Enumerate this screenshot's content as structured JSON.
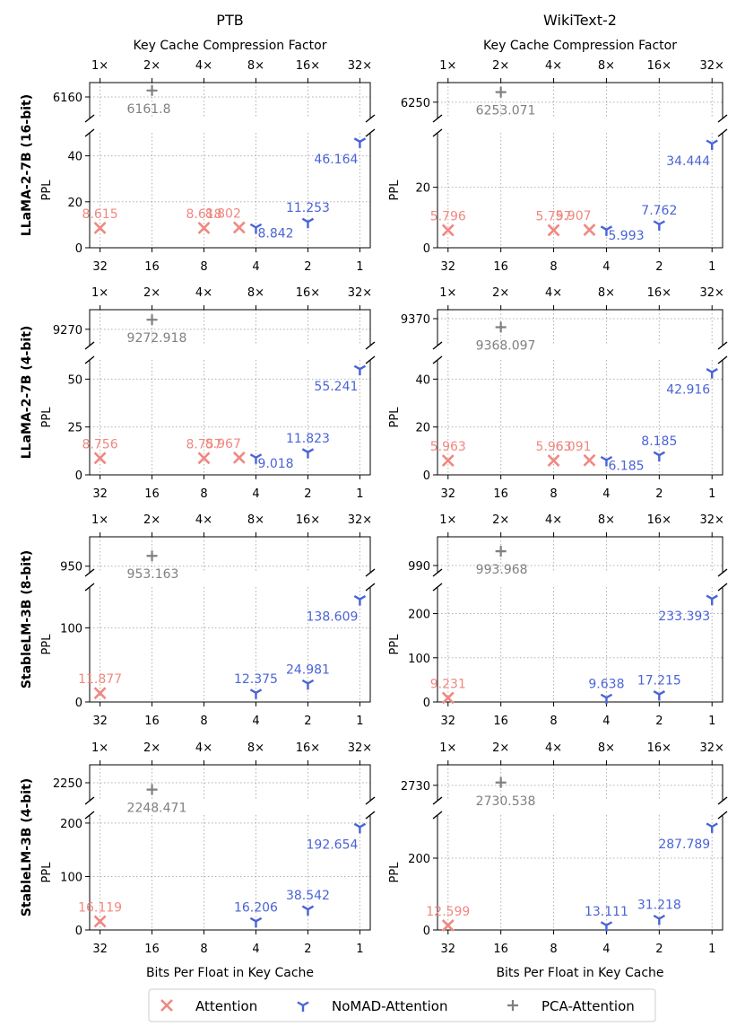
{
  "chart_data": {
    "type": "scatter",
    "columns": [
      "PTB",
      "WikiText-2"
    ],
    "top_axis_label": "Key Cache Compression Factor",
    "top_ticks": [
      "1×",
      "2×",
      "4×",
      "8×",
      "16×",
      "32×"
    ],
    "bottom_axis_label": "Bits Per Float in Key Cache",
    "bottom_ticks": [
      "32",
      "16",
      "8",
      "4",
      "2",
      "1"
    ],
    "ylabel": "PPL",
    "legend": [
      {
        "name": "Attention",
        "color": "#f08880",
        "marker": "x"
      },
      {
        "name": "NoMAD-Attention",
        "color": "#4a64d6",
        "marker": "tri-down"
      },
      {
        "name": "PCA-Attention",
        "color": "#808080",
        "marker": "plus"
      }
    ],
    "panels": [
      {
        "row_label": "LLaMA-2-7B (16-bit)",
        "column": "PTB",
        "upper_yticks": [
          6160
        ],
        "lower_yticks": [
          0,
          20,
          40
        ],
        "lower_ylim": [
          0,
          50
        ],
        "upper_ylim": [
          6154,
          6164
        ],
        "attention": [
          {
            "bits": 32,
            "ppl": 8.615,
            "label": "8.615"
          },
          {
            "bits": 8,
            "ppl": 8.618,
            "label": "8.618"
          },
          {
            "bits": 5,
            "ppl": 8.802,
            "label": "8.802"
          }
        ],
        "nomad": [
          {
            "bits": 4,
            "ppl": 8.842,
            "label": "8.842"
          },
          {
            "bits": 2,
            "ppl": 11.253,
            "label": "11.253"
          },
          {
            "bits": 1,
            "ppl": 46.164,
            "label": "46.164"
          }
        ],
        "pca": [
          {
            "bits": 16,
            "ppl": 6161.8,
            "label": "6161.8"
          }
        ]
      },
      {
        "row_label": "LLaMA-2-7B (16-bit)",
        "column": "WikiText-2",
        "upper_yticks": [
          6250
        ],
        "lower_yticks": [
          0,
          20
        ],
        "lower_ylim": [
          0,
          38
        ],
        "upper_ylim": [
          6245,
          6256
        ],
        "attention": [
          {
            "bits": 32,
            "ppl": 5.796,
            "label": "5.796"
          },
          {
            "bits": 8,
            "ppl": 5.797,
            "label": "5.797"
          },
          {
            "bits": 5,
            "ppl": 5.907,
            "label": "5.907"
          }
        ],
        "nomad": [
          {
            "bits": 4,
            "ppl": 5.993,
            "label": "5.993"
          },
          {
            "bits": 2,
            "ppl": 7.762,
            "label": "7.762"
          },
          {
            "bits": 1,
            "ppl": 34.444,
            "label": "34.444"
          }
        ],
        "pca": [
          {
            "bits": 16,
            "ppl": 6253.071,
            "label": "6253.071"
          }
        ]
      },
      {
        "row_label": "LLaMA-2-7B (4-bit)",
        "column": "PTB",
        "upper_yticks": [
          9270
        ],
        "lower_yticks": [
          0,
          25,
          50
        ],
        "lower_ylim": [
          0,
          60
        ],
        "upper_ylim": [
          9265,
          9276
        ],
        "attention": [
          {
            "bits": 32,
            "ppl": 8.756,
            "label": "8.756"
          },
          {
            "bits": 8,
            "ppl": 8.757,
            "label": "8.757"
          },
          {
            "bits": 5,
            "ppl": 8.967,
            "label": "8.967"
          }
        ],
        "nomad": [
          {
            "bits": 4,
            "ppl": 9.018,
            "label": "9.018"
          },
          {
            "bits": 2,
            "ppl": 11.823,
            "label": "11.823"
          },
          {
            "bits": 1,
            "ppl": 55.241,
            "label": "55.241"
          }
        ],
        "pca": [
          {
            "bits": 16,
            "ppl": 9272.918,
            "label": "9272.918"
          }
        ]
      },
      {
        "row_label": "LLaMA-2-7B (4-bit)",
        "column": "WikiText-2",
        "upper_yticks": [
          9370
        ],
        "lower_yticks": [
          0,
          20,
          40
        ],
        "lower_ylim": [
          0,
          48
        ],
        "upper_ylim": [
          9364,
          9372
        ],
        "attention": [
          {
            "bits": 32,
            "ppl": 5.963,
            "label": "5.963"
          },
          {
            "bits": 8,
            "ppl": 5.963,
            "label": "5.963"
          },
          {
            "bits": 5,
            "ppl": 6.091,
            "label": "6.091"
          }
        ],
        "nomad": [
          {
            "bits": 4,
            "ppl": 6.185,
            "label": "6.185"
          },
          {
            "bits": 2,
            "ppl": 8.185,
            "label": "8.185"
          },
          {
            "bits": 1,
            "ppl": 42.916,
            "label": "42.916"
          }
        ],
        "pca": [
          {
            "bits": 16,
            "ppl": 9368.097,
            "label": "9368.097"
          }
        ]
      },
      {
        "row_label": "StableLM-3B (8-bit)",
        "column": "PTB",
        "upper_yticks": [
          950
        ],
        "lower_yticks": [
          0,
          100
        ],
        "lower_ylim": [
          0,
          155
        ],
        "upper_ylim": [
          948,
          959
        ],
        "attention": [
          {
            "bits": 32,
            "ppl": 11.877,
            "label": "11.877"
          }
        ],
        "nomad": [
          {
            "bits": 4,
            "ppl": 12.375,
            "label": "12.375"
          },
          {
            "bits": 2,
            "ppl": 24.981,
            "label": "24.981"
          },
          {
            "bits": 1,
            "ppl": 138.609,
            "label": "138.609"
          }
        ],
        "pca": [
          {
            "bits": 16,
            "ppl": 953.163,
            "label": "953.163"
          }
        ]
      },
      {
        "row_label": "StableLM-3B (8-bit)",
        "column": "WikiText-2",
        "upper_yticks": [
          990
        ],
        "lower_yticks": [
          0,
          100,
          200
        ],
        "lower_ylim": [
          0,
          260
        ],
        "upper_ylim": [
          988,
          998
        ],
        "attention": [
          {
            "bits": 32,
            "ppl": 9.231,
            "label": "9.231"
          }
        ],
        "nomad": [
          {
            "bits": 4,
            "ppl": 9.638,
            "label": "9.638"
          },
          {
            "bits": 2,
            "ppl": 17.215,
            "label": "17.215"
          },
          {
            "bits": 1,
            "ppl": 233.393,
            "label": "233.393"
          }
        ],
        "pca": [
          {
            "bits": 16,
            "ppl": 993.968,
            "label": "993.968"
          }
        ]
      },
      {
        "row_label": "StableLM-3B (4-bit)",
        "column": "PTB",
        "upper_yticks": [
          2250
        ],
        "lower_yticks": [
          0,
          100,
          200
        ],
        "lower_ylim": [
          0,
          215
        ],
        "upper_ylim": [
          2246,
          2254
        ],
        "attention": [
          {
            "bits": 32,
            "ppl": 16.119,
            "label": "16.119"
          }
        ],
        "nomad": [
          {
            "bits": 4,
            "ppl": 16.206,
            "label": "16.206"
          },
          {
            "bits": 2,
            "ppl": 38.542,
            "label": "38.542"
          },
          {
            "bits": 1,
            "ppl": 192.654,
            "label": "192.654"
          }
        ],
        "pca": [
          {
            "bits": 16,
            "ppl": 2248.471,
            "label": "2248.471"
          }
        ]
      },
      {
        "row_label": "StableLM-3B (4-bit)",
        "column": "WikiText-2",
        "upper_yticks": [
          2730
        ],
        "lower_yticks": [
          0,
          200
        ],
        "lower_ylim": [
          0,
          320
        ],
        "upper_ylim": [
          2727,
          2734
        ],
        "attention": [
          {
            "bits": 32,
            "ppl": 12.599,
            "label": "12.599"
          }
        ],
        "nomad": [
          {
            "bits": 4,
            "ppl": 13.111,
            "label": "13.111"
          },
          {
            "bits": 2,
            "ppl": 31.218,
            "label": "31.218"
          },
          {
            "bits": 1,
            "ppl": 287.789,
            "label": "287.789"
          }
        ],
        "pca": [
          {
            "bits": 16,
            "ppl": 2730.538,
            "label": "2730.538"
          }
        ]
      }
    ]
  }
}
